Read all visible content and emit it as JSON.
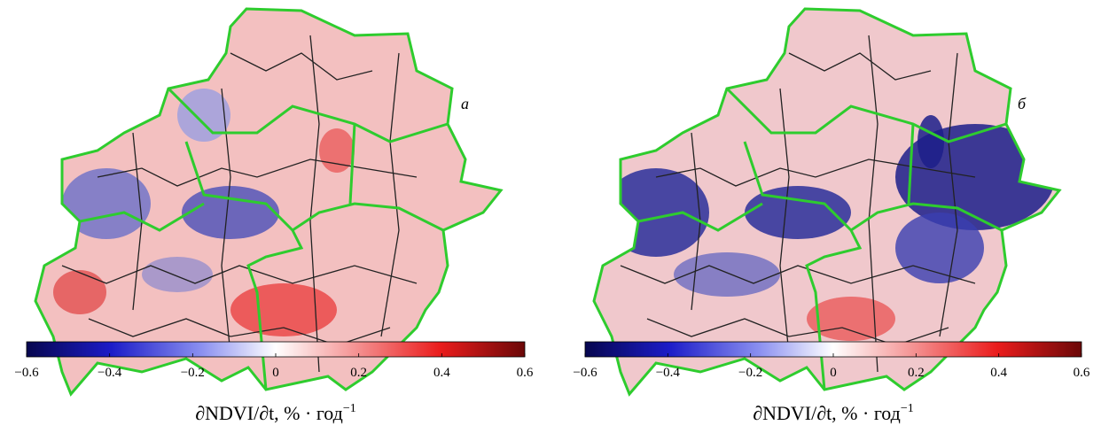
{
  "panels": [
    {
      "letter": "а",
      "colorbar": {
        "lim": [
          -0.6,
          0.6
        ],
        "ticks": [
          {
            "value": -0.6,
            "label": "−0.6"
          },
          {
            "value": -0.4,
            "label": "−0.4"
          },
          {
            "value": -0.2,
            "label": "−0.2"
          },
          0,
          0.2,
          0.4,
          0.6
        ],
        "label": "∂NDVI/∂t, % · год",
        "label_exponent": "−1"
      }
    },
    {
      "letter": "б",
      "colorbar": {
        "lim": [
          -0.6,
          0.6
        ],
        "ticks": [
          {
            "value": -0.6,
            "label": "−0.6"
          },
          {
            "value": -0.4,
            "label": "−0.4"
          },
          {
            "value": -0.2,
            "label": "−0.2"
          },
          0,
          0.2,
          0.4,
          0.6
        ],
        "label": "∂NDVI/∂t, % · год",
        "label_exponent": "−1"
      }
    }
  ]
}
